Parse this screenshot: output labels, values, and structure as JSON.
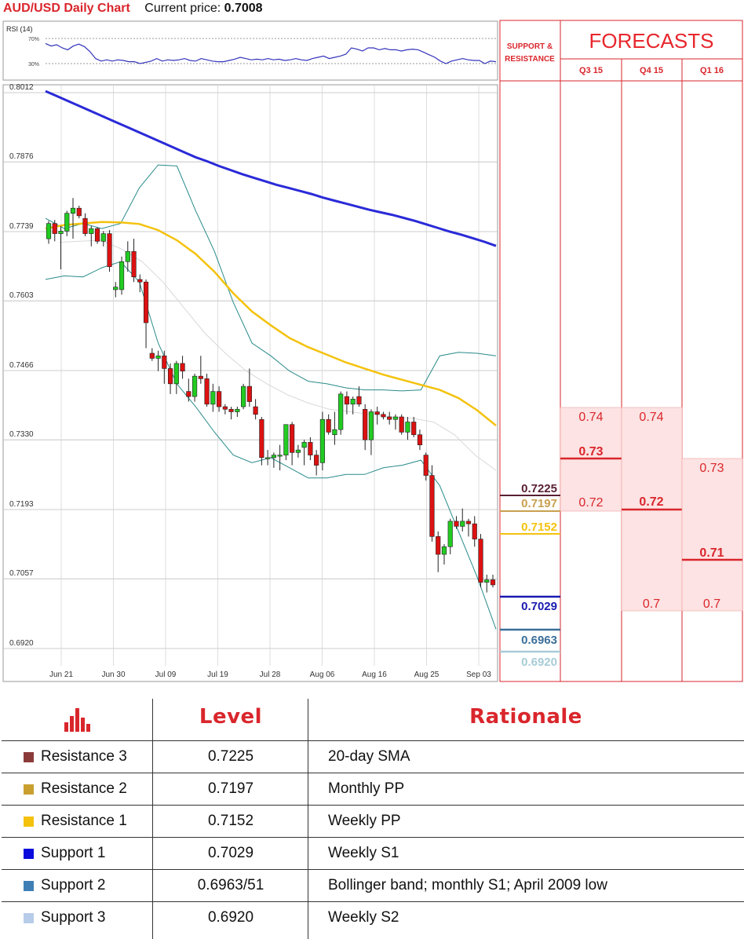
{
  "header": {
    "title": "AUD/USD Daily Chart",
    "price_label": "Current price:",
    "price_value": "0.7008"
  },
  "chart_data": {
    "type": "candlestick",
    "title": "AUD/USD Daily Chart",
    "rsi_label": "RSI (14)",
    "rsi_ticks": [
      "70%",
      "30%"
    ],
    "rsi_values": [
      62,
      58,
      60,
      55,
      52,
      58,
      61,
      57,
      49,
      38,
      34,
      36,
      34,
      36,
      35,
      33,
      33,
      30,
      32,
      34,
      38,
      34,
      36,
      35,
      36,
      38,
      35,
      34,
      38,
      36,
      34,
      33,
      33,
      35,
      37,
      40,
      38,
      36,
      37,
      36,
      38,
      36,
      37,
      35,
      36,
      38,
      36,
      35,
      38,
      40,
      42,
      38,
      40,
      42,
      45,
      55,
      53,
      50,
      55,
      55,
      52,
      54,
      52,
      52,
      50,
      52,
      53,
      52,
      48,
      44,
      40,
      34,
      30,
      34,
      36,
      38,
      36,
      35,
      35,
      30,
      34,
      33
    ],
    "y_ticks": [
      "0.8012",
      "0.7876",
      "0.7739",
      "0.7603",
      "0.7466",
      "0.7330",
      "0.7193",
      "0.7057",
      "0.6920"
    ],
    "x_ticks": [
      "Jun 21",
      "Jun 30",
      "Jul 09",
      "Jul 19",
      "Jul 28",
      "Aug 06",
      "Aug 16",
      "Aug 25",
      "Sep 03"
    ],
    "ylim": [
      0.692,
      0.8012
    ],
    "candles": [
      [
        0.7725,
        0.776,
        0.7715,
        0.7755
      ],
      [
        0.7755,
        0.7762,
        0.772,
        0.7735
      ],
      [
        0.7735,
        0.775,
        0.7665,
        0.774
      ],
      [
        0.774,
        0.778,
        0.773,
        0.7775
      ],
      [
        0.7775,
        0.7805,
        0.7725,
        0.7785
      ],
      [
        0.7785,
        0.779,
        0.7765,
        0.777
      ],
      [
        0.7765,
        0.7775,
        0.773,
        0.7735
      ],
      [
        0.7735,
        0.775,
        0.771,
        0.7745
      ],
      [
        0.7745,
        0.7748,
        0.7715,
        0.772
      ],
      [
        0.772,
        0.774,
        0.771,
        0.7735
      ],
      [
        0.7735,
        0.7742,
        0.766,
        0.767
      ],
      [
        0.7625,
        0.764,
        0.761,
        0.763
      ],
      [
        0.7625,
        0.769,
        0.7615,
        0.768
      ],
      [
        0.768,
        0.772,
        0.766,
        0.77
      ],
      [
        0.77,
        0.7725,
        0.764,
        0.765
      ],
      [
        0.7645,
        0.7655,
        0.762,
        0.764
      ],
      [
        0.764,
        0.7645,
        0.751,
        0.756
      ],
      [
        0.75,
        0.751,
        0.7485,
        0.749
      ],
      [
        0.749,
        0.7505,
        0.7465,
        0.7495
      ],
      [
        0.7495,
        0.7505,
        0.744,
        0.747
      ],
      [
        0.747,
        0.748,
        0.742,
        0.744
      ],
      [
        0.744,
        0.7485,
        0.742,
        0.748
      ],
      [
        0.748,
        0.7495,
        0.745,
        0.7465
      ],
      [
        0.7425,
        0.745,
        0.7405,
        0.7415
      ],
      [
        0.7415,
        0.746,
        0.7405,
        0.7455
      ],
      [
        0.7455,
        0.7495,
        0.744,
        0.745
      ],
      [
        0.745,
        0.746,
        0.7395,
        0.74
      ],
      [
        0.74,
        0.744,
        0.7385,
        0.7425
      ],
      [
        0.7425,
        0.7435,
        0.7385,
        0.7395
      ],
      [
        0.7395,
        0.74,
        0.738,
        0.739
      ],
      [
        0.739,
        0.7395,
        0.737,
        0.7385
      ],
      [
        0.7385,
        0.7395,
        0.7375,
        0.739
      ],
      [
        0.7395,
        0.744,
        0.739,
        0.7435
      ],
      [
        0.7435,
        0.747,
        0.7395,
        0.7405
      ],
      [
        0.7395,
        0.741,
        0.737,
        0.738
      ],
      [
        0.737,
        0.7375,
        0.728,
        0.7295
      ],
      [
        0.7295,
        0.731,
        0.728,
        0.7295
      ],
      [
        0.7295,
        0.7305,
        0.7275,
        0.73
      ],
      [
        0.73,
        0.732,
        0.727,
        0.73
      ],
      [
        0.73,
        0.736,
        0.729,
        0.736
      ],
      [
        0.736,
        0.7365,
        0.728,
        0.7305
      ],
      [
        0.7305,
        0.732,
        0.7295,
        0.731
      ],
      [
        0.7315,
        0.733,
        0.728,
        0.7325
      ],
      [
        0.7325,
        0.7335,
        0.729,
        0.73
      ],
      [
        0.73,
        0.731,
        0.726,
        0.728
      ],
      [
        0.7285,
        0.7385,
        0.727,
        0.737
      ],
      [
        0.737,
        0.738,
        0.734,
        0.7345
      ],
      [
        0.734,
        0.7385,
        0.732,
        0.735
      ],
      [
        0.735,
        0.7425,
        0.734,
        0.742
      ],
      [
        0.7415,
        0.7425,
        0.738,
        0.74
      ],
      [
        0.74,
        0.7415,
        0.738,
        0.741
      ],
      [
        0.7415,
        0.7435,
        0.7395,
        0.74
      ],
      [
        0.739,
        0.74,
        0.731,
        0.733
      ],
      [
        0.733,
        0.739,
        0.73,
        0.7385
      ],
      [
        0.7385,
        0.7395,
        0.736,
        0.738
      ],
      [
        0.738,
        0.7385,
        0.737,
        0.7375
      ],
      [
        0.7375,
        0.7385,
        0.736,
        0.737
      ],
      [
        0.737,
        0.738,
        0.735,
        0.7375
      ],
      [
        0.7375,
        0.738,
        0.734,
        0.7345
      ],
      [
        0.7345,
        0.7375,
        0.733,
        0.7365
      ],
      [
        0.7365,
        0.7375,
        0.7335,
        0.734
      ],
      [
        0.734,
        0.735,
        0.731,
        0.732
      ],
      [
        0.73,
        0.7305,
        0.725,
        0.726
      ],
      [
        0.726,
        0.728,
        0.713,
        0.714
      ],
      [
        0.714,
        0.715,
        0.707,
        0.7105
      ],
      [
        0.7105,
        0.7125,
        0.7085,
        0.712
      ],
      [
        0.712,
        0.7175,
        0.7105,
        0.717
      ],
      [
        0.717,
        0.718,
        0.7155,
        0.716
      ],
      [
        0.716,
        0.7195,
        0.715,
        0.717
      ],
      [
        0.717,
        0.7175,
        0.714,
        0.7165
      ],
      [
        0.7165,
        0.718,
        0.712,
        0.7135
      ],
      [
        0.7135,
        0.7145,
        0.704,
        0.705
      ],
      [
        0.705,
        0.7065,
        0.703,
        0.7055
      ],
      [
        0.7055,
        0.7065,
        0.704,
        0.7045
      ]
    ],
    "sma200": [
      0.8015,
      0.8005,
      0.7995,
      0.7985,
      0.7975,
      0.7965,
      0.7955,
      0.7945,
      0.7935,
      0.7925,
      0.7915,
      0.7905,
      0.7895,
      0.7885,
      0.7877,
      0.7868,
      0.786,
      0.7852,
      0.7845,
      0.7838,
      0.7831,
      0.7825,
      0.7819,
      0.7813,
      0.7806,
      0.78,
      0.7794,
      0.7788,
      0.7782,
      0.7777,
      0.7772,
      0.7766,
      0.776,
      0.7753,
      0.7746,
      0.7739,
      0.7733,
      0.7726,
      0.7719,
      0.7711
    ],
    "sma50": [
      0.7745,
      0.7752,
      0.7755,
      0.7758,
      0.7757,
      0.7754,
      0.7742,
      0.7722,
      0.7695,
      0.766,
      0.7618,
      0.7582,
      0.7555,
      0.753,
      0.7512,
      0.7497,
      0.7482,
      0.747,
      0.7458,
      0.7448,
      0.7438,
      0.7428,
      0.7412,
      0.7388,
      0.7358
    ],
    "sma20": [
      0.7718,
      0.772,
      0.7722,
      0.7705,
      0.768,
      0.764,
      0.759,
      0.754,
      0.75,
      0.7465,
      0.744,
      0.7418,
      0.7402,
      0.739,
      0.7385,
      0.738,
      0.7375,
      0.7372,
      0.7365,
      0.734,
      0.73,
      0.727
    ],
    "bb_upper": [
      0.7765,
      0.7745,
      0.7755,
      0.7745,
      0.7755,
      0.7825,
      0.787,
      0.7868,
      0.778,
      0.77,
      0.76,
      0.752,
      0.7495,
      0.7465,
      0.7445,
      0.744,
      0.7432,
      0.7428,
      0.7428,
      0.7426,
      0.7428,
      0.7495,
      0.7502,
      0.75,
      0.7495
    ],
    "bb_lower": [
      0.7645,
      0.7652,
      0.765,
      0.7668,
      0.768,
      0.764,
      0.752,
      0.744,
      0.7395,
      0.7345,
      0.73,
      0.7285,
      0.7295,
      0.7275,
      0.7255,
      0.7255,
      0.7262,
      0.7262,
      0.7275,
      0.728,
      0.729,
      0.724,
      0.715,
      0.706,
      0.6958
    ]
  },
  "levels": [
    {
      "value": "0.7225",
      "color": "#5a2035"
    },
    {
      "value": "0.7197",
      "color": "#c9a050"
    },
    {
      "value": "0.7152",
      "color": "#f4c20d"
    },
    {
      "value": "0.7029",
      "color": "#1a1ab0"
    },
    {
      "value": "0.6963",
      "color": "#3b6e99"
    },
    {
      "value": "0.6920",
      "color": "#a8ccd8"
    }
  ],
  "forecasts": {
    "sr_label_1": "SUPPORT &",
    "sr_label_2": "RESISTANCE",
    "title": "FORECASTS",
    "columns": [
      {
        "q": "Q3 15",
        "high": "0.74",
        "mid": "0.73",
        "low": "0.72"
      },
      {
        "q": "Q4 15",
        "high": "0.74",
        "mid": "0.72",
        "low": "0.7"
      },
      {
        "q": "Q1 16",
        "high": "0.73",
        "mid": "0.71",
        "low": "0.7"
      }
    ]
  },
  "table": {
    "header_level": "Level",
    "header_rationale": "Rationale",
    "rows": [
      {
        "name": "Resistance 3",
        "level": "0.7225",
        "rationale": "20-day SMA",
        "color": "#8b3a3a"
      },
      {
        "name": "Resistance 2",
        "level": "0.7197",
        "rationale": "Monthly PP",
        "color": "#c9a030"
      },
      {
        "name": "Resistance 1",
        "level": "0.7152",
        "rationale": "Weekly PP",
        "color": "#f4c20d"
      },
      {
        "name": "Support 1",
        "level": "0.7029",
        "rationale": "Weekly S1",
        "color": "#0a0adc"
      },
      {
        "name": "Support 2",
        "level": "0.6963/51",
        "rationale": "Bollinger band; monthly S1; April 2009 low",
        "color": "#3f7fb5"
      },
      {
        "name": "Support 3",
        "level": "0.6920",
        "rationale": "Weekly S2",
        "color": "#b7cce8"
      }
    ]
  }
}
